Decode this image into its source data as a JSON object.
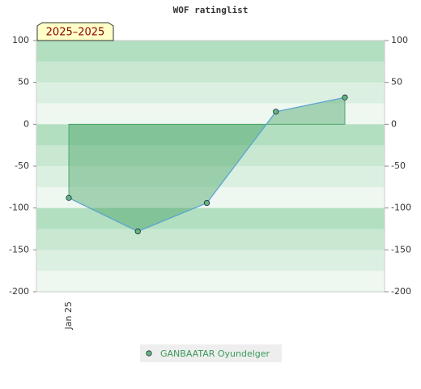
{
  "chart_data": {
    "type": "area",
    "title": "WOF ratinglist",
    "annotation": "2025–2025",
    "categories": [
      "Jan 25",
      null,
      null,
      null,
      null
    ],
    "series": [
      {
        "name": "GANBAATAR Oyundelger",
        "color": "#3a9a5a",
        "values": [
          -88,
          -128,
          -94,
          15,
          32
        ]
      }
    ],
    "ylim": [
      -200,
      100
    ],
    "yticks": [
      -200,
      -150,
      -100,
      -50,
      0,
      50,
      100
    ],
    "grid": true
  }
}
